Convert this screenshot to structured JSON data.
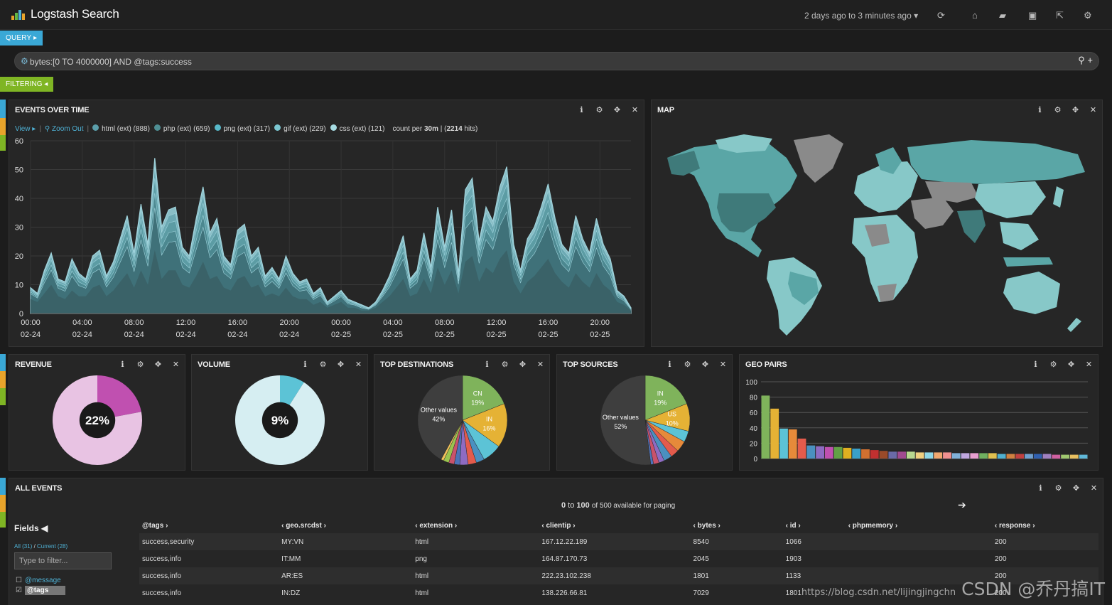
{
  "app": {
    "title": "Logstash Search"
  },
  "header": {
    "time_range": "2 days ago to 3 minutes ago"
  },
  "query": {
    "button_label": "QUERY",
    "text": "bytes:[0 TO 4000000] AND @tags:success"
  },
  "filtering": {
    "button_label": "FILTERING"
  },
  "colors": {
    "accent_blue": "#3aa8d6",
    "accent_green": "#7fb524",
    "panel_bg": "#262626"
  },
  "events_panel": {
    "title": "EVENTS OVER TIME",
    "view_label": "View",
    "zoom_label": "Zoom Out",
    "series": [
      {
        "label": "html (ext) (888)",
        "color": "#5b9eaa"
      },
      {
        "label": "php (ext) (659)",
        "color": "#4f8f94"
      },
      {
        "label": "png (ext) (317)",
        "color": "#57b8c8"
      },
      {
        "label": "gif (ext) (229)",
        "color": "#7bc7d1"
      },
      {
        "label": "css (ext) (121)",
        "color": "#a6dbe2"
      }
    ],
    "count_prefix": "count per",
    "interval": "30m",
    "hits": "2214",
    "hits_suffix": "hits"
  },
  "chart_data": [
    {
      "type": "area",
      "title": "EVENTS OVER TIME",
      "ylim": [
        0,
        60
      ],
      "yticks": [
        "60",
        "50",
        "40",
        "30",
        "20",
        "10",
        "0"
      ],
      "xticks": [
        {
          "time": "00:00",
          "date": "02-24"
        },
        {
          "time": "04:00",
          "date": "02-24"
        },
        {
          "time": "08:00",
          "date": "02-24"
        },
        {
          "time": "12:00",
          "date": "02-24"
        },
        {
          "time": "16:00",
          "date": "02-24"
        },
        {
          "time": "20:00",
          "date": "02-24"
        },
        {
          "time": "00:00",
          "date": "02-25"
        },
        {
          "time": "04:00",
          "date": "02-25"
        },
        {
          "time": "08:00",
          "date": "02-25"
        },
        {
          "time": "12:00",
          "date": "02-25"
        },
        {
          "time": "16:00",
          "date": "02-25"
        },
        {
          "time": "20:00",
          "date": "02-25"
        }
      ],
      "total": [
        9,
        7,
        15,
        21,
        12,
        11,
        19,
        14,
        12,
        20,
        22,
        13,
        18,
        26,
        34,
        21,
        38,
        24,
        54,
        30,
        36,
        37,
        23,
        20,
        33,
        44,
        28,
        33,
        20,
        17,
        29,
        31,
        20,
        23,
        13,
        16,
        12,
        20,
        14,
        11,
        12,
        7,
        9,
        4,
        6,
        8,
        5,
        4,
        3,
        2,
        4,
        8,
        13,
        20,
        27,
        12,
        15,
        28,
        16,
        37,
        23,
        36,
        14,
        43,
        47,
        25,
        37,
        32,
        44,
        51,
        24,
        15,
        26,
        30,
        37,
        45,
        33,
        24,
        21,
        34,
        26,
        21,
        33,
        24,
        19,
        8,
        6,
        2
      ],
      "base": [
        5,
        4,
        7,
        10,
        6,
        5,
        8,
        6,
        6,
        9,
        10,
        6,
        8,
        11,
        14,
        9,
        15,
        10,
        22,
        12,
        15,
        15,
        10,
        9,
        13,
        18,
        12,
        13,
        9,
        8,
        12,
        13,
        9,
        10,
        6,
        7,
        6,
        9,
        6,
        5,
        5,
        3,
        4,
        2,
        3,
        4,
        2,
        2,
        1,
        1,
        2,
        4,
        6,
        9,
        12,
        6,
        7,
        12,
        7,
        16,
        10,
        15,
        7,
        18,
        20,
        11,
        16,
        14,
        19,
        22,
        11,
        7,
        11,
        13,
        16,
        19,
        14,
        11,
        9,
        14,
        11,
        9,
        14,
        10,
        8,
        4,
        3,
        1
      ]
    },
    {
      "type": "pie",
      "title": "REVENUE",
      "center_label": "22%",
      "values": [
        22,
        78
      ],
      "colors": [
        "#c050b0",
        "#e8c3e3"
      ]
    },
    {
      "type": "pie",
      "title": "VOLUME",
      "center_label": "9%",
      "values": [
        9,
        91
      ],
      "colors": [
        "#5cc3d6",
        "#d6eef2"
      ]
    },
    {
      "type": "pie",
      "title": "TOP DESTINATIONS",
      "slices": [
        {
          "label": "CN",
          "value": 19,
          "pct_label": "19%",
          "color": "#7fb35b"
        },
        {
          "label": "IN",
          "value": 16,
          "pct_label": "16%",
          "color": "#e5b235"
        },
        {
          "label": "",
          "value": 7,
          "color": "#5cc3d6"
        },
        {
          "label": "",
          "value": 3,
          "color": "#4a90c0"
        },
        {
          "label": "",
          "value": 3,
          "color": "#e35b4c"
        },
        {
          "label": "",
          "value": 3,
          "color": "#8e6bc2"
        },
        {
          "label": "",
          "value": 2,
          "color": "#4d72b8"
        },
        {
          "label": "",
          "value": 2,
          "color": "#c9526b"
        },
        {
          "label": "",
          "value": 2,
          "color": "#9bc44f"
        },
        {
          "label": "",
          "value": 1,
          "color": "#f0c05a"
        },
        {
          "label": "Other values",
          "value": 42,
          "pct_label": "42%",
          "color": "#3e3e3e"
        }
      ]
    },
    {
      "type": "pie",
      "title": "TOP SOURCES",
      "slices": [
        {
          "label": "IN",
          "value": 19,
          "pct_label": "19%",
          "color": "#7fb35b"
        },
        {
          "label": "US",
          "value": 10,
          "pct_label": "10%",
          "color": "#e5b235"
        },
        {
          "label": "",
          "value": 4,
          "color": "#5cc3d6"
        },
        {
          "label": "",
          "value": 4,
          "color": "#e68a3a"
        },
        {
          "label": "",
          "value": 3,
          "color": "#e35b4c"
        },
        {
          "label": "",
          "value": 3,
          "color": "#4a90c0"
        },
        {
          "label": "",
          "value": 2,
          "color": "#8e6bc2"
        },
        {
          "label": "",
          "value": 2,
          "color": "#c9526b"
        },
        {
          "label": "",
          "value": 1,
          "color": "#4d72b8"
        },
        {
          "label": "Other values",
          "value": 52,
          "pct_label": "52%",
          "color": "#3e3e3e"
        }
      ]
    },
    {
      "type": "bar",
      "title": "GEO PAIRS",
      "ylim": [
        0,
        100
      ],
      "yticks": [
        "100",
        "80",
        "60",
        "40",
        "20",
        "0"
      ],
      "values": [
        82,
        65,
        39,
        38,
        26,
        17,
        16,
        15,
        15,
        14,
        13,
        12,
        11,
        10,
        9,
        9,
        9,
        8,
        8,
        8,
        8,
        7,
        7,
        7,
        7,
        7,
        6,
        6,
        6,
        6,
        6,
        6,
        5,
        5,
        5,
        5
      ],
      "colors": [
        "#7fb35b",
        "#e5b235",
        "#5cc3d6",
        "#e68a3a",
        "#e35b4c",
        "#4a90c0",
        "#8e6bc2",
        "#c050b0",
        "#62a046",
        "#e0b020",
        "#3aa0c8",
        "#d07030",
        "#c03030",
        "#9a4a2a",
        "#6a6aa8",
        "#a04a90",
        "#b8d890",
        "#f0d080",
        "#90d8e8",
        "#f0a870",
        "#f09090",
        "#80b0d8",
        "#c0a8e0",
        "#e8a0d0",
        "#70b060",
        "#e0c050",
        "#50b0d0",
        "#d08040",
        "#c04040",
        "#70a0d0",
        "#3060b0",
        "#a080c0",
        "#d060a0",
        "#a0c870",
        "#e8c060",
        "#60b8d8"
      ]
    }
  ],
  "map_panel": {
    "title": "MAP"
  },
  "revenue_panel": {
    "title": "REVENUE"
  },
  "volume_panel": {
    "title": "VOLUME"
  },
  "dest_panel": {
    "title": "TOP DESTINATIONS",
    "other_label": "Other values",
    "other_pct": "42%",
    "cn_label": "CN",
    "cn_pct": "19%",
    "in_label": "IN",
    "in_pct": "16%"
  },
  "src_panel": {
    "title": "TOP SOURCES",
    "other_label": "Other values",
    "other_pct": "52%",
    "in_label": "IN",
    "in_pct": "19%",
    "us_label": "US",
    "us_pct": "10%"
  },
  "geo_panel": {
    "title": "GEO PAIRS"
  },
  "events_table_panel": {
    "title": "ALL EVENTS",
    "paging_from": "0",
    "paging_to": "100",
    "paging_rest": "of 500 available for paging",
    "fields_title": "Fields",
    "fields_all": "All (31)",
    "fields_current": "Current (28)",
    "filter_placeholder": "Type to filter...",
    "field_items": [
      {
        "name": "@message",
        "checked": false
      },
      {
        "name": "@tags",
        "checked": true
      }
    ],
    "columns": [
      "@tags",
      "geo.srcdst",
      "extension",
      "clientip",
      "bytes",
      "id",
      "phpmemory",
      "response"
    ],
    "rows": [
      [
        "success,security",
        "MY:VN",
        "html",
        "167.12.22.189",
        "8540",
        "1066",
        "",
        "200"
      ],
      [
        "success,info",
        "IT:MM",
        "png",
        "164.87.170.73",
        "2045",
        "1903",
        "",
        "200"
      ],
      [
        "success,info",
        "AR:ES",
        "html",
        "222.23.102.238",
        "1801",
        "1133",
        "",
        "200"
      ],
      [
        "success,info",
        "IN:DZ",
        "html",
        "138.226.66.81",
        "7029",
        "1801",
        "",
        "200"
      ]
    ]
  },
  "watermark": {
    "text": "CSDN @乔丹搞IT",
    "url": "https://blog.csdn.net/lijingjingchn"
  }
}
